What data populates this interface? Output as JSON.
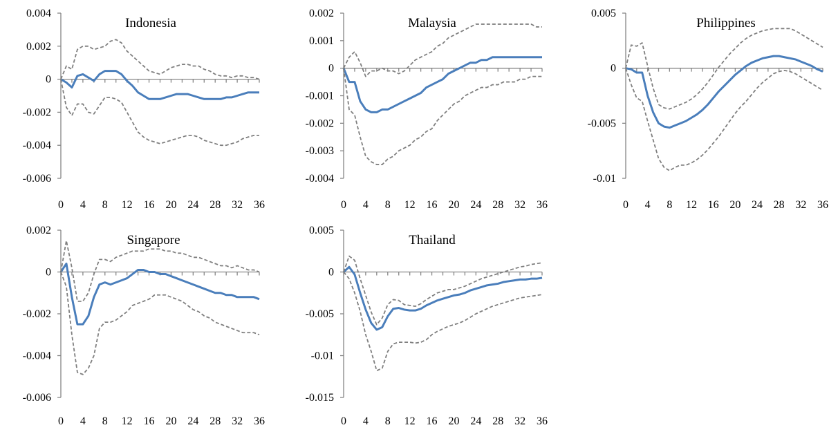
{
  "colors": {
    "central": "#4a7ebb",
    "band": "#7f7f7f",
    "axis": "#868686"
  },
  "chart_data": [
    {
      "type": "line",
      "title": "Indonesia",
      "x": [
        0,
        1,
        2,
        3,
        4,
        5,
        6,
        7,
        8,
        9,
        10,
        11,
        12,
        13,
        14,
        15,
        16,
        17,
        18,
        19,
        20,
        21,
        22,
        23,
        24,
        25,
        26,
        27,
        28,
        29,
        30,
        31,
        32,
        33,
        34,
        35,
        36
      ],
      "xticks": [
        "0",
        "4",
        "8",
        "12",
        "16",
        "20",
        "24",
        "28",
        "32",
        "36"
      ],
      "yticks": [
        "0.004",
        "0.002",
        "0",
        "-0.002",
        "-0.004",
        "-0.006"
      ],
      "ylim": [
        -0.006,
        0.004
      ],
      "series": [
        {
          "role": "central",
          "values": [
            0,
            -0.0002,
            -0.0005,
            0.0002,
            0.0003,
            0.0001,
            -0.0001,
            0.0003,
            0.0005,
            0.0005,
            0.0005,
            0.0003,
            -0.0001,
            -0.0004,
            -0.0008,
            -0.001,
            -0.0012,
            -0.0012,
            -0.0012,
            -0.0011,
            -0.001,
            -0.0009,
            -0.0009,
            -0.0009,
            -0.001,
            -0.0011,
            -0.0012,
            -0.0012,
            -0.0012,
            -0.0012,
            -0.0011,
            -0.0011,
            -0.001,
            -0.0009,
            -0.0008,
            -0.0008,
            -0.0008
          ]
        },
        {
          "role": "upper",
          "values": [
            0,
            0.0008,
            0.0006,
            0.0018,
            0.002,
            0.002,
            0.0018,
            0.0019,
            0.002,
            0.0023,
            0.0024,
            0.0022,
            0.0017,
            0.0014,
            0.0011,
            0.0008,
            0.0005,
            0.0004,
            0.0003,
            0.0005,
            0.0007,
            0.0008,
            0.0009,
            0.0009,
            0.0008,
            0.0008,
            0.0006,
            0.0005,
            0.0003,
            0.0002,
            0.0002,
            0.0001,
            0.0002,
            0.0002,
            0.0001,
            0.0001,
            0
          ]
        },
        {
          "role": "lower",
          "values": [
            0,
            -0.0017,
            -0.0022,
            -0.0015,
            -0.0015,
            -0.002,
            -0.0021,
            -0.0016,
            -0.0011,
            -0.0011,
            -0.0012,
            -0.0014,
            -0.002,
            -0.0026,
            -0.0032,
            -0.0035,
            -0.0037,
            -0.0038,
            -0.0039,
            -0.0038,
            -0.0037,
            -0.0036,
            -0.0035,
            -0.0034,
            -0.0034,
            -0.0035,
            -0.0037,
            -0.0038,
            -0.0039,
            -0.004,
            -0.004,
            -0.0039,
            -0.0038,
            -0.0036,
            -0.0035,
            -0.0034,
            -0.0034
          ]
        }
      ]
    },
    {
      "type": "line",
      "title": "Malaysia",
      "x": [
        0,
        1,
        2,
        3,
        4,
        5,
        6,
        7,
        8,
        9,
        10,
        11,
        12,
        13,
        14,
        15,
        16,
        17,
        18,
        19,
        20,
        21,
        22,
        23,
        24,
        25,
        26,
        27,
        28,
        29,
        30,
        31,
        32,
        33,
        34,
        35,
        36
      ],
      "xticks": [
        "0",
        "4",
        "8",
        "12",
        "16",
        "20",
        "24",
        "28",
        "32",
        "36"
      ],
      "yticks": [
        "0.002",
        "0.001",
        "0",
        "-0.001",
        "-0.002",
        "-0.003",
        "-0.004"
      ],
      "ylim": [
        -0.004,
        0.002
      ],
      "series": [
        {
          "role": "central",
          "values": [
            0,
            -0.0005,
            -0.0005,
            -0.0012,
            -0.0015,
            -0.0016,
            -0.0016,
            -0.0015,
            -0.0015,
            -0.0014,
            -0.0013,
            -0.0012,
            -0.0011,
            -0.001,
            -0.0009,
            -0.0007,
            -0.0006,
            -0.0005,
            -0.0004,
            -0.0002,
            -0.0001,
            0,
            0.0001,
            0.0002,
            0.0002,
            0.0003,
            0.0003,
            0.0004,
            0.0004,
            0.0004,
            0.0004,
            0.0004,
            0.0004,
            0.0004,
            0.0004,
            0.0004,
            0.0004
          ]
        },
        {
          "role": "upper",
          "values": [
            0,
            0.0004,
            0.0006,
            0.0002,
            -0.0003,
            -0.0001,
            -0.0001,
            0,
            -0.0001,
            -0.0001,
            -0.0002,
            -0.0001,
            0.0001,
            0.0003,
            0.0004,
            0.0005,
            0.0006,
            0.0008,
            0.0009,
            0.0011,
            0.0012,
            0.0013,
            0.0014,
            0.0015,
            0.0016,
            0.0016,
            0.0016,
            0.0016,
            0.0016,
            0.0016,
            0.0016,
            0.0016,
            0.0016,
            0.0016,
            0.0016,
            0.0015,
            0.0015
          ]
        },
        {
          "role": "lower",
          "values": [
            0,
            -0.0015,
            -0.0017,
            -0.0025,
            -0.0032,
            -0.0034,
            -0.0035,
            -0.0035,
            -0.0033,
            -0.0032,
            -0.003,
            -0.0029,
            -0.0028,
            -0.0026,
            -0.0025,
            -0.0023,
            -0.0022,
            -0.0019,
            -0.0017,
            -0.0015,
            -0.0013,
            -0.0012,
            -0.001,
            -0.0009,
            -0.0008,
            -0.0007,
            -0.0007,
            -0.0006,
            -0.0006,
            -0.0005,
            -0.0005,
            -0.0005,
            -0.0004,
            -0.0004,
            -0.0003,
            -0.0003,
            -0.0003
          ]
        }
      ]
    },
    {
      "type": "line",
      "title": "Philippines",
      "x": [
        0,
        1,
        2,
        3,
        4,
        5,
        6,
        7,
        8,
        9,
        10,
        11,
        12,
        13,
        14,
        15,
        16,
        17,
        18,
        19,
        20,
        21,
        22,
        23,
        24,
        25,
        26,
        27,
        28,
        29,
        30,
        31,
        32,
        33,
        34,
        35,
        36
      ],
      "xticks": [
        "0",
        "4",
        "8",
        "12",
        "16",
        "20",
        "24",
        "28",
        "32",
        "36"
      ],
      "yticks": [
        "0.005",
        "0",
        "-0.005",
        "-0.01"
      ],
      "ylim": [
        -0.01,
        0.005
      ],
      "series": [
        {
          "role": "central",
          "values": [
            0,
            -0.0001,
            -0.0004,
            -0.0004,
            -0.0025,
            -0.004,
            -0.005,
            -0.0053,
            -0.0054,
            -0.0052,
            -0.005,
            -0.0048,
            -0.0045,
            -0.0042,
            -0.0038,
            -0.0033,
            -0.0027,
            -0.0021,
            -0.0016,
            -0.0011,
            -0.0006,
            -0.0002,
            0.0002,
            0.0005,
            0.0007,
            0.0009,
            0.001,
            0.0011,
            0.0011,
            0.001,
            0.0009,
            0.0008,
            0.0006,
            0.0004,
            0.0002,
            -0.0001,
            -0.0003
          ]
        },
        {
          "role": "upper",
          "values": [
            0,
            0.0021,
            0.002,
            0.0023,
            0.0002,
            -0.0018,
            -0.0033,
            -0.0036,
            -0.0037,
            -0.0035,
            -0.0033,
            -0.0031,
            -0.0028,
            -0.0024,
            -0.0019,
            -0.0013,
            -0.0006,
            0.0001,
            0.0007,
            0.0013,
            0.0018,
            0.0023,
            0.0027,
            0.003,
            0.0032,
            0.0034,
            0.0035,
            0.0036,
            0.0036,
            0.0036,
            0.0036,
            0.0034,
            0.0031,
            0.0028,
            0.0025,
            0.0022,
            0.0019
          ]
        },
        {
          "role": "lower",
          "values": [
            0,
            -0.0015,
            -0.0027,
            -0.003,
            -0.0048,
            -0.0065,
            -0.0082,
            -0.009,
            -0.0093,
            -0.009,
            -0.0088,
            -0.0088,
            -0.0086,
            -0.0083,
            -0.0079,
            -0.0074,
            -0.0068,
            -0.0062,
            -0.0055,
            -0.0048,
            -0.0041,
            -0.0035,
            -0.003,
            -0.0024,
            -0.0018,
            -0.0013,
            -0.0009,
            -0.0005,
            -0.0003,
            -0.0002,
            -0.0003,
            -0.0005,
            -0.0008,
            -0.0011,
            -0.0014,
            -0.0017,
            -0.002
          ]
        }
      ]
    },
    {
      "type": "line",
      "title": "Singapore",
      "x": [
        0,
        1,
        2,
        3,
        4,
        5,
        6,
        7,
        8,
        9,
        10,
        11,
        12,
        13,
        14,
        15,
        16,
        17,
        18,
        19,
        20,
        21,
        22,
        23,
        24,
        25,
        26,
        27,
        28,
        29,
        30,
        31,
        32,
        33,
        34,
        35,
        36
      ],
      "xticks": [
        "0",
        "4",
        "8",
        "12",
        "16",
        "20",
        "24",
        "28",
        "32",
        "36"
      ],
      "yticks": [
        "0.002",
        "0",
        "-0.002",
        "-0.004",
        "-0.006"
      ],
      "ylim": [
        -0.006,
        0.002
      ],
      "series": [
        {
          "role": "central",
          "values": [
            0,
            0.0004,
            -0.0012,
            -0.0025,
            -0.0025,
            -0.0021,
            -0.0012,
            -0.0006,
            -0.0005,
            -0.0006,
            -0.0005,
            -0.0004,
            -0.0003,
            -0.0001,
            0.0001,
            0.0001,
            0,
            0,
            -0.0001,
            -0.0001,
            -0.0002,
            -0.0003,
            -0.0004,
            -0.0005,
            -0.0006,
            -0.0007,
            -0.0008,
            -0.0009,
            -0.001,
            -0.001,
            -0.0011,
            -0.0011,
            -0.0012,
            -0.0012,
            -0.0012,
            -0.0012,
            -0.0013
          ]
        },
        {
          "role": "upper",
          "values": [
            0,
            0.0015,
            0.0002,
            -0.0014,
            -0.0014,
            -0.001,
            -0.0001,
            0.0006,
            0.0006,
            0.0005,
            0.0007,
            0.0008,
            0.0009,
            0.001,
            0.001,
            0.001,
            0.0011,
            0.0011,
            0.0011,
            0.001,
            0.001,
            0.0009,
            0.0009,
            0.0008,
            0.0007,
            0.0007,
            0.0006,
            0.0005,
            0.0004,
            0.0003,
            0.0003,
            0.0002,
            0.0003,
            0.0002,
            0.0001,
            0.0001,
            0
          ]
        },
        {
          "role": "lower",
          "values": [
            0,
            -0.0007,
            -0.003,
            -0.0048,
            -0.0049,
            -0.0046,
            -0.004,
            -0.0027,
            -0.0024,
            -0.0024,
            -0.0023,
            -0.0021,
            -0.0019,
            -0.0016,
            -0.0015,
            -0.0014,
            -0.0013,
            -0.0011,
            -0.0011,
            -0.0011,
            -0.0012,
            -0.0013,
            -0.0014,
            -0.0016,
            -0.0018,
            -0.0019,
            -0.0021,
            -0.0022,
            -0.0024,
            -0.0025,
            -0.0026,
            -0.0027,
            -0.0028,
            -0.0029,
            -0.0029,
            -0.0029,
            -0.003
          ]
        }
      ]
    },
    {
      "type": "line",
      "title": "Thailand",
      "x": [
        0,
        1,
        2,
        3,
        4,
        5,
        6,
        7,
        8,
        9,
        10,
        11,
        12,
        13,
        14,
        15,
        16,
        17,
        18,
        19,
        20,
        21,
        22,
        23,
        24,
        25,
        26,
        27,
        28,
        29,
        30,
        31,
        32,
        33,
        34,
        35,
        36
      ],
      "xticks": [
        "0",
        "4",
        "8",
        "12",
        "16",
        "20",
        "24",
        "28",
        "32",
        "36"
      ],
      "yticks": [
        "0.005",
        "0",
        "-0.005",
        "-0.01",
        "-0.015"
      ],
      "ylim": [
        -0.015,
        0.005
      ],
      "series": [
        {
          "role": "central",
          "values": [
            0,
            0.0006,
            -0.0003,
            -0.0025,
            -0.0045,
            -0.0061,
            -0.0069,
            -0.0066,
            -0.0053,
            -0.0044,
            -0.0043,
            -0.0045,
            -0.0046,
            -0.0046,
            -0.0044,
            -0.004,
            -0.0037,
            -0.0034,
            -0.0032,
            -0.003,
            -0.0028,
            -0.0027,
            -0.0025,
            -0.0022,
            -0.002,
            -0.0018,
            -0.0016,
            -0.0015,
            -0.0014,
            -0.0012,
            -0.0011,
            -0.001,
            -0.0009,
            -0.0009,
            -0.0008,
            -0.0008,
            -0.0007
          ]
        },
        {
          "role": "upper",
          "values": [
            0,
            0.0019,
            0.0014,
            -0.0008,
            -0.0028,
            -0.0048,
            -0.0063,
            -0.0055,
            -0.0039,
            -0.0033,
            -0.0034,
            -0.0039,
            -0.004,
            -0.0041,
            -0.0038,
            -0.0033,
            -0.0029,
            -0.0025,
            -0.0023,
            -0.0021,
            -0.0021,
            -0.0019,
            -0.0017,
            -0.0014,
            -0.0011,
            -0.0008,
            -0.0006,
            -0.0004,
            -0.0002,
            0,
            0.0002,
            0.0004,
            0.0006,
            0.0007,
            0.0009,
            0.001,
            0.0011
          ]
        },
        {
          "role": "lower",
          "values": [
            0,
            -0.0008,
            -0.0025,
            -0.0047,
            -0.0075,
            -0.0095,
            -0.0118,
            -0.0115,
            -0.0095,
            -0.0086,
            -0.0084,
            -0.0084,
            -0.0084,
            -0.0085,
            -0.0084,
            -0.0081,
            -0.0075,
            -0.0071,
            -0.0068,
            -0.0065,
            -0.0063,
            -0.0061,
            -0.0058,
            -0.0054,
            -0.005,
            -0.0047,
            -0.0044,
            -0.0041,
            -0.0039,
            -0.0037,
            -0.0035,
            -0.0033,
            -0.0031,
            -0.003,
            -0.0029,
            -0.0028,
            -0.0027
          ]
        }
      ]
    }
  ]
}
